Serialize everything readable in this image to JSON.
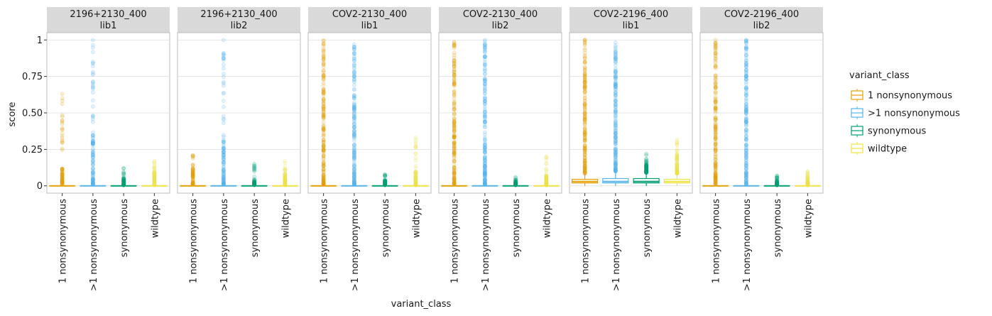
{
  "chart_data": {
    "type": "boxplot",
    "xlabel": "variant_class",
    "ylabel": "score",
    "ylim": [
      -0.05,
      1.05
    ],
    "y_ticks": [
      {
        "value": 0,
        "label": "0"
      },
      {
        "value": 0.25,
        "label": "0.25"
      },
      {
        "value": 0.5,
        "label": "0.50"
      },
      {
        "value": 0.75,
        "label": "0.75"
      },
      {
        "value": 1,
        "label": "1"
      }
    ],
    "categories": [
      "1 nonsynonymous",
      ">1 nonsynonymous",
      "synonymous",
      "wildtype"
    ],
    "colors": {
      "1 nonsynonymous": "#E69F00",
      ">1 nonsynonymous": "#56B4E9",
      "synonymous": "#009E73",
      "wildtype": "#F0E442"
    },
    "grid": true,
    "legend": {
      "title": "variant_class",
      "position": "right",
      "entries": [
        "1 nonsynonymous",
        ">1 nonsynonymous",
        "synonymous",
        "wildtype"
      ]
    },
    "facets": [
      {
        "label_top": "2196+2130_400",
        "label_bottom": "lib1",
        "groups": [
          {
            "category": "1 nonsynonymous",
            "q1": 0,
            "median": 0,
            "q3": 0,
            "whisker_high": 0.01,
            "max": 0.63,
            "density_top": 0.13
          },
          {
            "category": ">1 nonsynonymous",
            "q1": 0,
            "median": 0,
            "q3": 0,
            "whisker_high": 0.01,
            "max": 1.0,
            "density_top": 0.35
          },
          {
            "category": "synonymous",
            "q1": 0,
            "median": 0,
            "q3": 0,
            "whisker_high": 0.005,
            "max": 0.12,
            "density_top": 0.05
          },
          {
            "category": "wildtype",
            "q1": 0,
            "median": 0,
            "q3": 0,
            "whisker_high": 0.005,
            "max": 0.17,
            "density_top": 0.1
          }
        ]
      },
      {
        "label_top": "2196+2130_400",
        "label_bottom": "lib2",
        "groups": [
          {
            "category": "1 nonsynonymous",
            "q1": 0,
            "median": 0,
            "q3": 0,
            "whisker_high": 0.01,
            "max": 0.21,
            "density_top": 0.13
          },
          {
            "category": ">1 nonsynonymous",
            "q1": 0,
            "median": 0,
            "q3": 0,
            "whisker_high": 0.01,
            "max": 1.0,
            "density_top": 0.32
          },
          {
            "category": "synonymous",
            "q1": 0,
            "median": 0,
            "q3": 0,
            "whisker_high": 0.005,
            "max": 0.15,
            "density_top": 0.05
          },
          {
            "category": "wildtype",
            "q1": 0,
            "median": 0,
            "q3": 0,
            "whisker_high": 0.005,
            "max": 0.17,
            "density_top": 0.08
          }
        ]
      },
      {
        "label_top": "COV2-2130_400",
        "label_bottom": "lib1",
        "groups": [
          {
            "category": "1 nonsynonymous",
            "q1": 0,
            "median": 0,
            "q3": 0,
            "whisker_high": 0.01,
            "max": 1.0,
            "density_top": 1.0
          },
          {
            "category": ">1 nonsynonymous",
            "q1": 0,
            "median": 0,
            "q3": 0,
            "whisker_high": 0.01,
            "max": 1.0,
            "density_top": 1.0
          },
          {
            "category": "synonymous",
            "q1": 0,
            "median": 0,
            "q3": 0,
            "whisker_high": 0.005,
            "max": 0.08,
            "density_top": 0.04
          },
          {
            "category": "wildtype",
            "q1": 0,
            "median": 0,
            "q3": 0,
            "whisker_high": 0.005,
            "max": 0.33,
            "density_top": 0.1
          }
        ]
      },
      {
        "label_top": "COV2-2130_400",
        "label_bottom": "lib2",
        "groups": [
          {
            "category": "1 nonsynonymous",
            "q1": 0,
            "median": 0,
            "q3": 0,
            "whisker_high": 0.01,
            "max": 1.0,
            "density_top": 1.0
          },
          {
            "category": ">1 nonsynonymous",
            "q1": 0,
            "median": 0,
            "q3": 0,
            "whisker_high": 0.01,
            "max": 1.0,
            "density_top": 1.0
          },
          {
            "category": "synonymous",
            "q1": 0,
            "median": 0,
            "q3": 0,
            "whisker_high": 0.005,
            "max": 0.06,
            "density_top": 0.03
          },
          {
            "category": "wildtype",
            "q1": 0,
            "median": 0,
            "q3": 0,
            "whisker_high": 0.005,
            "max": 0.2,
            "density_top": 0.07
          }
        ]
      },
      {
        "label_top": "COV2-2196_400",
        "label_bottom": "lib1",
        "groups": [
          {
            "category": "1 nonsynonymous",
            "q1": 0.02,
            "median": 0.03,
            "q3": 0.045,
            "whisker_high": 0.085,
            "max": 1.0,
            "density_top": 0.9
          },
          {
            "category": ">1 nonsynonymous",
            "q1": 0.02,
            "median": 0.03,
            "q3": 0.05,
            "whisker_high": 0.1,
            "max": 1.0,
            "density_top": 1.0
          },
          {
            "category": "synonymous",
            "q1": 0.02,
            "median": 0.03,
            "q3": 0.05,
            "whisker_high": 0.09,
            "max": 0.22,
            "density_top": 0.15
          },
          {
            "category": "wildtype",
            "q1": 0.02,
            "median": 0.03,
            "q3": 0.045,
            "whisker_high": 0.085,
            "max": 0.32,
            "density_top": 0.22
          }
        ]
      },
      {
        "label_top": "COV2-2196_400",
        "label_bottom": "lib2",
        "groups": [
          {
            "category": "1 nonsynonymous",
            "q1": 0,
            "median": 0,
            "q3": 0,
            "whisker_high": 0.01,
            "max": 1.0,
            "density_top": 0.95
          },
          {
            "category": ">1 nonsynonymous",
            "q1": 0,
            "median": 0,
            "q3": 0,
            "whisker_high": 0.01,
            "max": 1.0,
            "density_top": 0.95
          },
          {
            "category": "synonymous",
            "q1": 0,
            "median": 0,
            "q3": 0,
            "whisker_high": 0.005,
            "max": 0.07,
            "density_top": 0.04
          },
          {
            "category": "wildtype",
            "q1": 0,
            "median": 0,
            "q3": 0,
            "whisker_high": 0.005,
            "max": 0.1,
            "density_top": 0.06
          }
        ]
      }
    ]
  }
}
